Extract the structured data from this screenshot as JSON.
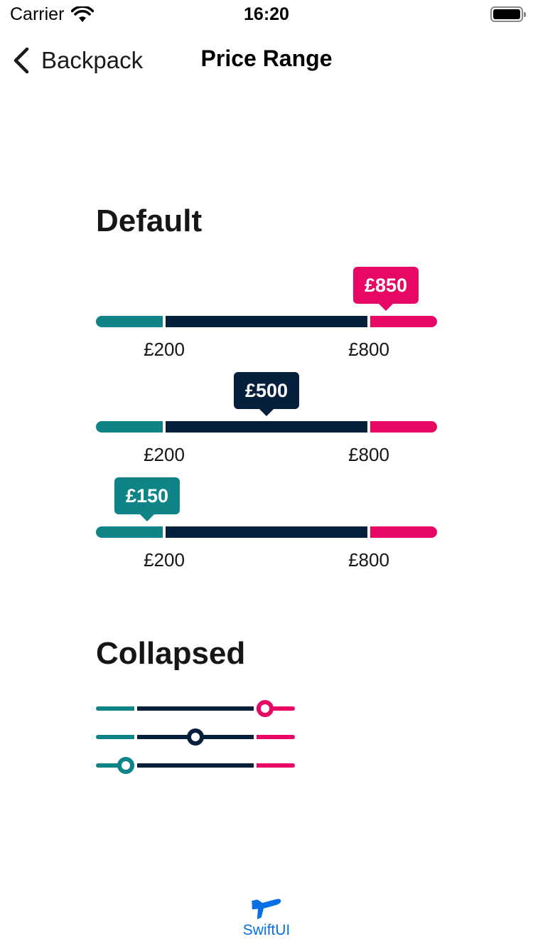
{
  "status_bar": {
    "carrier": "Carrier",
    "time": "16:20"
  },
  "nav": {
    "back_label": "Backpack",
    "title": "Price Range"
  },
  "colors": {
    "teal": "#0e8487",
    "navy": "#05203c",
    "pink": "#e70866",
    "tab_blue": "#0770e3"
  },
  "sections": {
    "default_title": "Default",
    "collapsed_title": "Collapsed"
  },
  "default_sliders": [
    {
      "bubble": "£850",
      "bubble_color": "#e70866",
      "low_label": "£200",
      "high_label": "£800",
      "value_fraction": 0.85
    },
    {
      "bubble": "£500",
      "bubble_color": "#05203c",
      "low_label": "£200",
      "high_label": "£800",
      "value_fraction": 0.5
    },
    {
      "bubble": "£150",
      "bubble_color": "#0e8487",
      "low_label": "£200",
      "high_label": "£800",
      "value_fraction": 0.15
    }
  ],
  "collapsed_sliders": [
    {
      "knob_color": "#e70866",
      "value_fraction": 0.85
    },
    {
      "knob_color": "#05203c",
      "value_fraction": 0.5
    },
    {
      "knob_color": "#0e8487",
      "value_fraction": 0.15
    }
  ],
  "tab_bar": {
    "label": "SwiftUI",
    "icon": "airplane-icon"
  }
}
